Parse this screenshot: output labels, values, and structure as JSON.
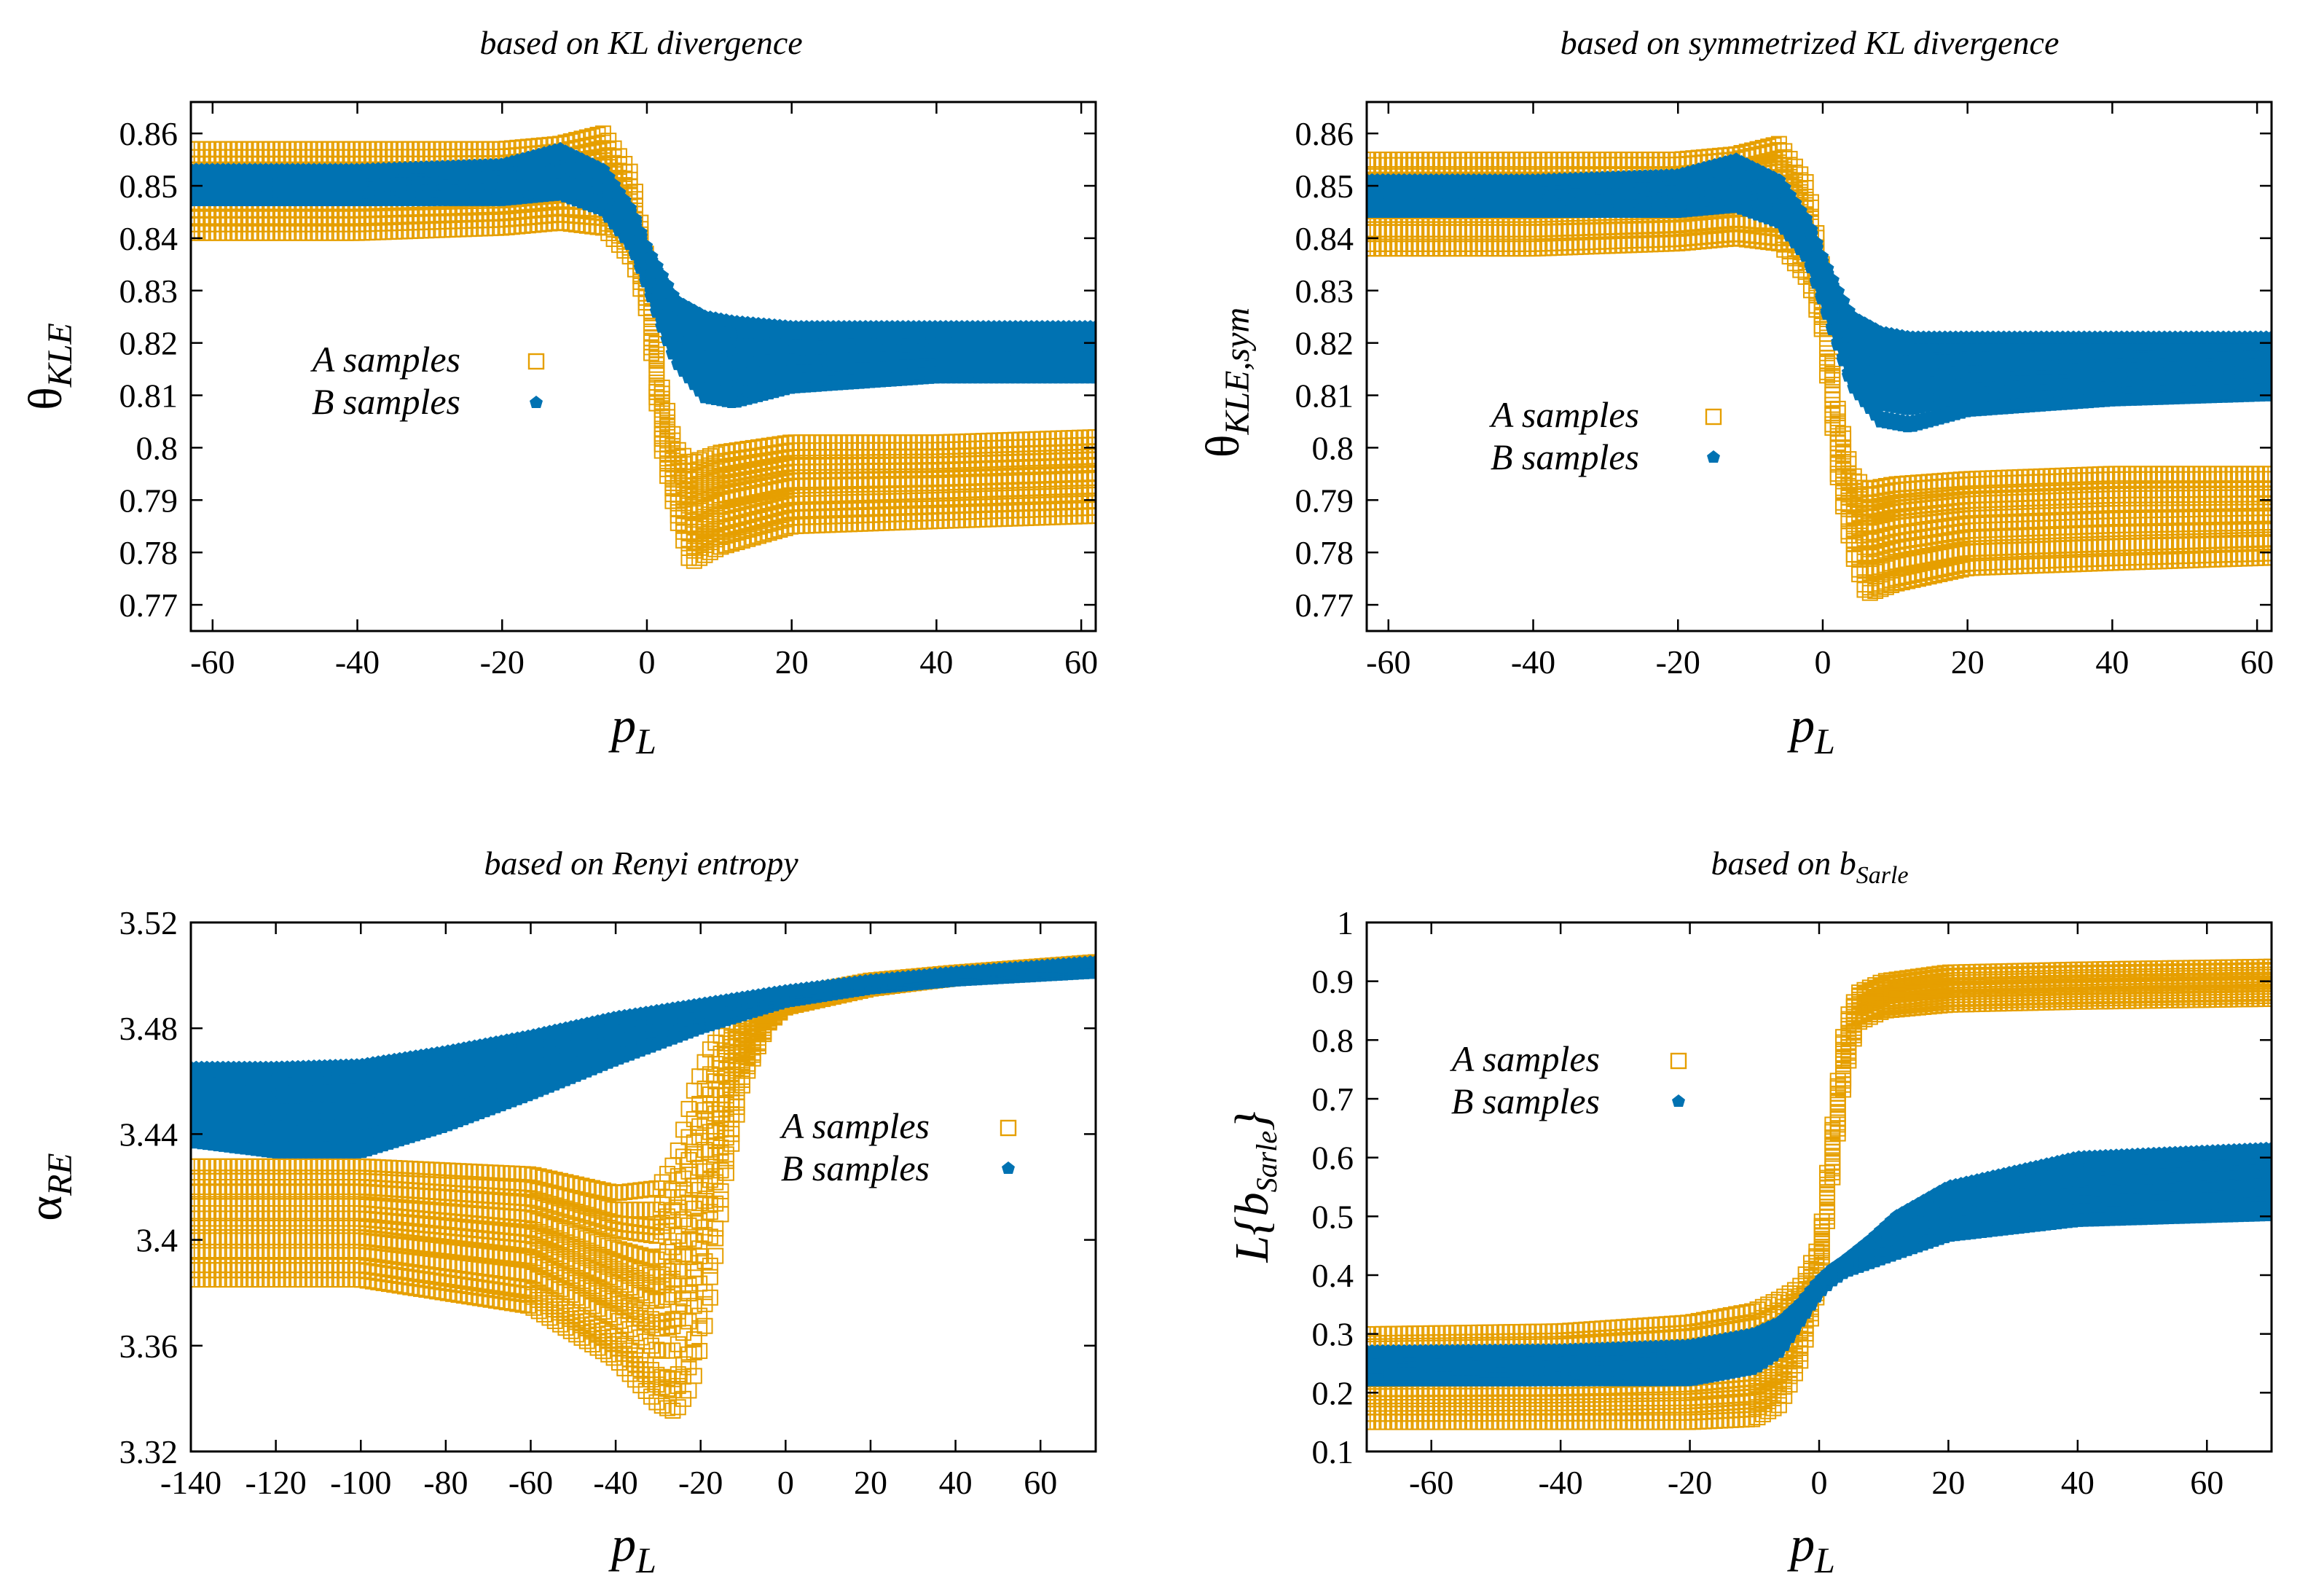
{
  "colors": {
    "a": "#e69f00",
    "b": "#0072b2",
    "axis": "#000000"
  },
  "chart_data": [
    {
      "type": "scatter",
      "title": "based on KL divergence",
      "ylabel_main": "θ",
      "ylabel_sub": "KLE",
      "xlabel_main": "p",
      "xlabel_sub": "L",
      "xlim": [
        -63,
        62
      ],
      "ylim": [
        0.765,
        0.866
      ],
      "xticks": [
        -60,
        -40,
        -20,
        0,
        20,
        40,
        60
      ],
      "xtick_labels": [
        "-60",
        "-40",
        "-20",
        "0",
        "20",
        "40",
        "60"
      ],
      "yticks": [
        0.77,
        0.78,
        0.79,
        0.8,
        0.81,
        0.82,
        0.83,
        0.84,
        0.85,
        0.86
      ],
      "ytick_labels": [
        "0.77",
        "0.78",
        "0.79",
        "0.8",
        "0.81",
        "0.82",
        "0.83",
        "0.84",
        "0.85",
        "0.86"
      ],
      "legend": [
        "A samples",
        "B samples"
      ],
      "series": [
        {
          "name": "A samples",
          "marker": "open-square",
          "x": [
            -63,
            -40,
            -20,
            -12,
            -6,
            -2,
            0,
            2,
            4,
            6,
            10,
            20,
            40,
            62
          ],
          "lower": [
            0.841,
            0.841,
            0.842,
            0.843,
            0.842,
            0.836,
            0.826,
            0.8,
            0.787,
            0.778,
            0.781,
            0.785,
            0.786,
            0.787
          ],
          "upper": [
            0.857,
            0.857,
            0.857,
            0.858,
            0.86,
            0.852,
            0.836,
            0.812,
            0.8,
            0.797,
            0.799,
            0.801,
            0.801,
            0.802
          ]
        },
        {
          "name": "B samples",
          "marker": "filled-pentagon",
          "x": [
            -63,
            -40,
            -20,
            -12,
            -6,
            -2,
            0,
            2,
            4,
            8,
            12,
            20,
            40,
            62
          ],
          "lower": [
            0.847,
            0.847,
            0.847,
            0.848,
            0.845,
            0.838,
            0.831,
            0.823,
            0.816,
            0.809,
            0.808,
            0.811,
            0.813,
            0.813
          ],
          "upper": [
            0.853,
            0.853,
            0.854,
            0.857,
            0.853,
            0.845,
            0.838,
            0.833,
            0.828,
            0.825,
            0.824,
            0.823,
            0.823,
            0.823
          ]
        }
      ]
    },
    {
      "type": "scatter",
      "title": "based on symmetrized KL divergence",
      "ylabel_main": "θ",
      "ylabel_sub": "KLE,sym",
      "xlabel_main": "p",
      "xlabel_sub": "L",
      "xlim": [
        -63,
        62
      ],
      "ylim": [
        0.765,
        0.866
      ],
      "xticks": [
        -60,
        -40,
        -20,
        0,
        20,
        40,
        60
      ],
      "xtick_labels": [
        "-60",
        "-40",
        "-20",
        "0",
        "20",
        "40",
        "60"
      ],
      "yticks": [
        0.77,
        0.78,
        0.79,
        0.8,
        0.81,
        0.82,
        0.83,
        0.84,
        0.85,
        0.86
      ],
      "ytick_labels": [
        "0.77",
        "0.78",
        "0.79",
        "0.8",
        "0.81",
        "0.82",
        "0.83",
        "0.84",
        "0.85",
        "0.86"
      ],
      "legend": [
        "A samples",
        "B samples"
      ],
      "series": [
        {
          "name": "A samples",
          "marker": "open-square",
          "x": [
            -63,
            -40,
            -20,
            -12,
            -6,
            -2,
            0,
            2,
            4,
            6,
            10,
            20,
            40,
            62
          ],
          "lower": [
            0.838,
            0.838,
            0.839,
            0.84,
            0.839,
            0.832,
            0.822,
            0.795,
            0.78,
            0.772,
            0.774,
            0.777,
            0.778,
            0.779
          ],
          "upper": [
            0.855,
            0.855,
            0.855,
            0.856,
            0.858,
            0.85,
            0.834,
            0.808,
            0.795,
            0.792,
            0.793,
            0.794,
            0.795,
            0.795
          ]
        },
        {
          "name": "B samples",
          "marker": "filled-pentagon",
          "x": [
            -63,
            -40,
            -20,
            -12,
            -6,
            -2,
            0,
            2,
            4,
            8,
            12,
            20,
            40,
            62
          ],
          "lower": [
            0.845,
            0.845,
            0.845,
            0.846,
            0.843,
            0.836,
            0.828,
            0.82,
            0.812,
            0.805,
            0.804,
            0.807,
            0.809,
            0.81
          ],
          "upper": [
            0.851,
            0.851,
            0.852,
            0.855,
            0.851,
            0.843,
            0.836,
            0.83,
            0.825,
            0.822,
            0.821,
            0.821,
            0.821,
            0.821
          ]
        }
      ]
    },
    {
      "type": "scatter",
      "title": "based on Renyi entropy",
      "ylabel_main": "α",
      "ylabel_sub": "RE",
      "xlabel_main": "p",
      "xlabel_sub": "L",
      "xlim": [
        -140,
        73
      ],
      "ylim": [
        3.32,
        3.52
      ],
      "xticks": [
        -140,
        -120,
        -100,
        -80,
        -60,
        -40,
        -20,
        0,
        20,
        40,
        60
      ],
      "xtick_labels": [
        "-140",
        "-120",
        "-100",
        "-80",
        "-60",
        "-40",
        "-20",
        "0",
        "20",
        "40",
        "60"
      ],
      "yticks": [
        3.32,
        3.36,
        3.4,
        3.44,
        3.48,
        3.52
      ],
      "ytick_labels": [
        "3.32",
        "3.36",
        "3.4",
        "3.44",
        "3.48",
        "3.52"
      ],
      "legend": [
        "A samples",
        "B samples"
      ],
      "series": [
        {
          "name": "A samples",
          "marker": "open-square",
          "x": [
            -140,
            -100,
            -60,
            -40,
            -30,
            -26,
            -22,
            -18,
            -14,
            -10,
            -4,
            0,
            20,
            40,
            73
          ],
          "lower": [
            3.385,
            3.385,
            3.375,
            3.355,
            3.338,
            3.335,
            3.345,
            3.375,
            3.425,
            3.46,
            3.482,
            3.488,
            3.495,
            3.499,
            3.502
          ],
          "upper": [
            3.428,
            3.428,
            3.425,
            3.418,
            3.42,
            3.43,
            3.455,
            3.472,
            3.48,
            3.484,
            3.488,
            3.492,
            3.498,
            3.501,
            3.505
          ]
        },
        {
          "name": "B samples",
          "marker": "filled-pentagon",
          "x": [
            -140,
            -120,
            -100,
            -80,
            -60,
            -40,
            -20,
            0,
            20,
            40,
            73
          ],
          "lower": [
            3.437,
            3.433,
            3.433,
            3.443,
            3.455,
            3.468,
            3.48,
            3.49,
            3.495,
            3.498,
            3.501
          ],
          "upper": [
            3.465,
            3.465,
            3.466,
            3.471,
            3.477,
            3.484,
            3.489,
            3.494,
            3.498,
            3.501,
            3.505
          ]
        }
      ]
    },
    {
      "type": "scatter",
      "title_main": "based on b",
      "title_sub": "Sarle",
      "ylabel_main": "L{b",
      "ylabel_sub": "Sarle",
      "ylabel_tail": "}",
      "xlabel_main": "p",
      "xlabel_sub": "L",
      "xlim": [
        -70,
        70
      ],
      "ylim": [
        0.1,
        1.0
      ],
      "xticks": [
        -60,
        -40,
        -20,
        0,
        20,
        40,
        60
      ],
      "xtick_labels": [
        "-60",
        "-40",
        "-20",
        "0",
        "20",
        "40",
        "60"
      ],
      "yticks": [
        0.1,
        0.2,
        0.3,
        0.4,
        0.5,
        0.6,
        0.7,
        0.8,
        0.9,
        1
      ],
      "ytick_labels": [
        "0.1",
        "0.2",
        "0.3",
        "0.4",
        "0.5",
        "0.6",
        "0.7",
        "0.8",
        "0.9",
        "1"
      ],
      "legend": [
        "A samples",
        "B samples"
      ],
      "series": [
        {
          "name": "A samples",
          "marker": "open-square",
          "x": [
            -70,
            -40,
            -20,
            -10,
            -6,
            -3,
            0,
            2,
            4,
            6,
            10,
            20,
            40,
            70
          ],
          "lower": [
            0.15,
            0.15,
            0.15,
            0.155,
            0.18,
            0.25,
            0.38,
            0.56,
            0.74,
            0.83,
            0.85,
            0.86,
            0.865,
            0.87
          ],
          "upper": [
            0.3,
            0.305,
            0.32,
            0.34,
            0.36,
            0.38,
            0.45,
            0.65,
            0.83,
            0.88,
            0.9,
            0.915,
            0.92,
            0.925
          ]
        },
        {
          "name": "B samples",
          "marker": "filled-pentagon",
          "x": [
            -70,
            -40,
            -20,
            -10,
            -6,
            -3,
            0,
            2,
            4,
            8,
            12,
            20,
            40,
            70
          ],
          "lower": [
            0.22,
            0.22,
            0.22,
            0.24,
            0.27,
            0.32,
            0.37,
            0.39,
            0.405,
            0.42,
            0.435,
            0.465,
            0.49,
            0.5
          ],
          "upper": [
            0.27,
            0.272,
            0.28,
            0.3,
            0.32,
            0.35,
            0.39,
            0.41,
            0.425,
            0.46,
            0.5,
            0.55,
            0.6,
            0.615
          ]
        }
      ]
    }
  ]
}
